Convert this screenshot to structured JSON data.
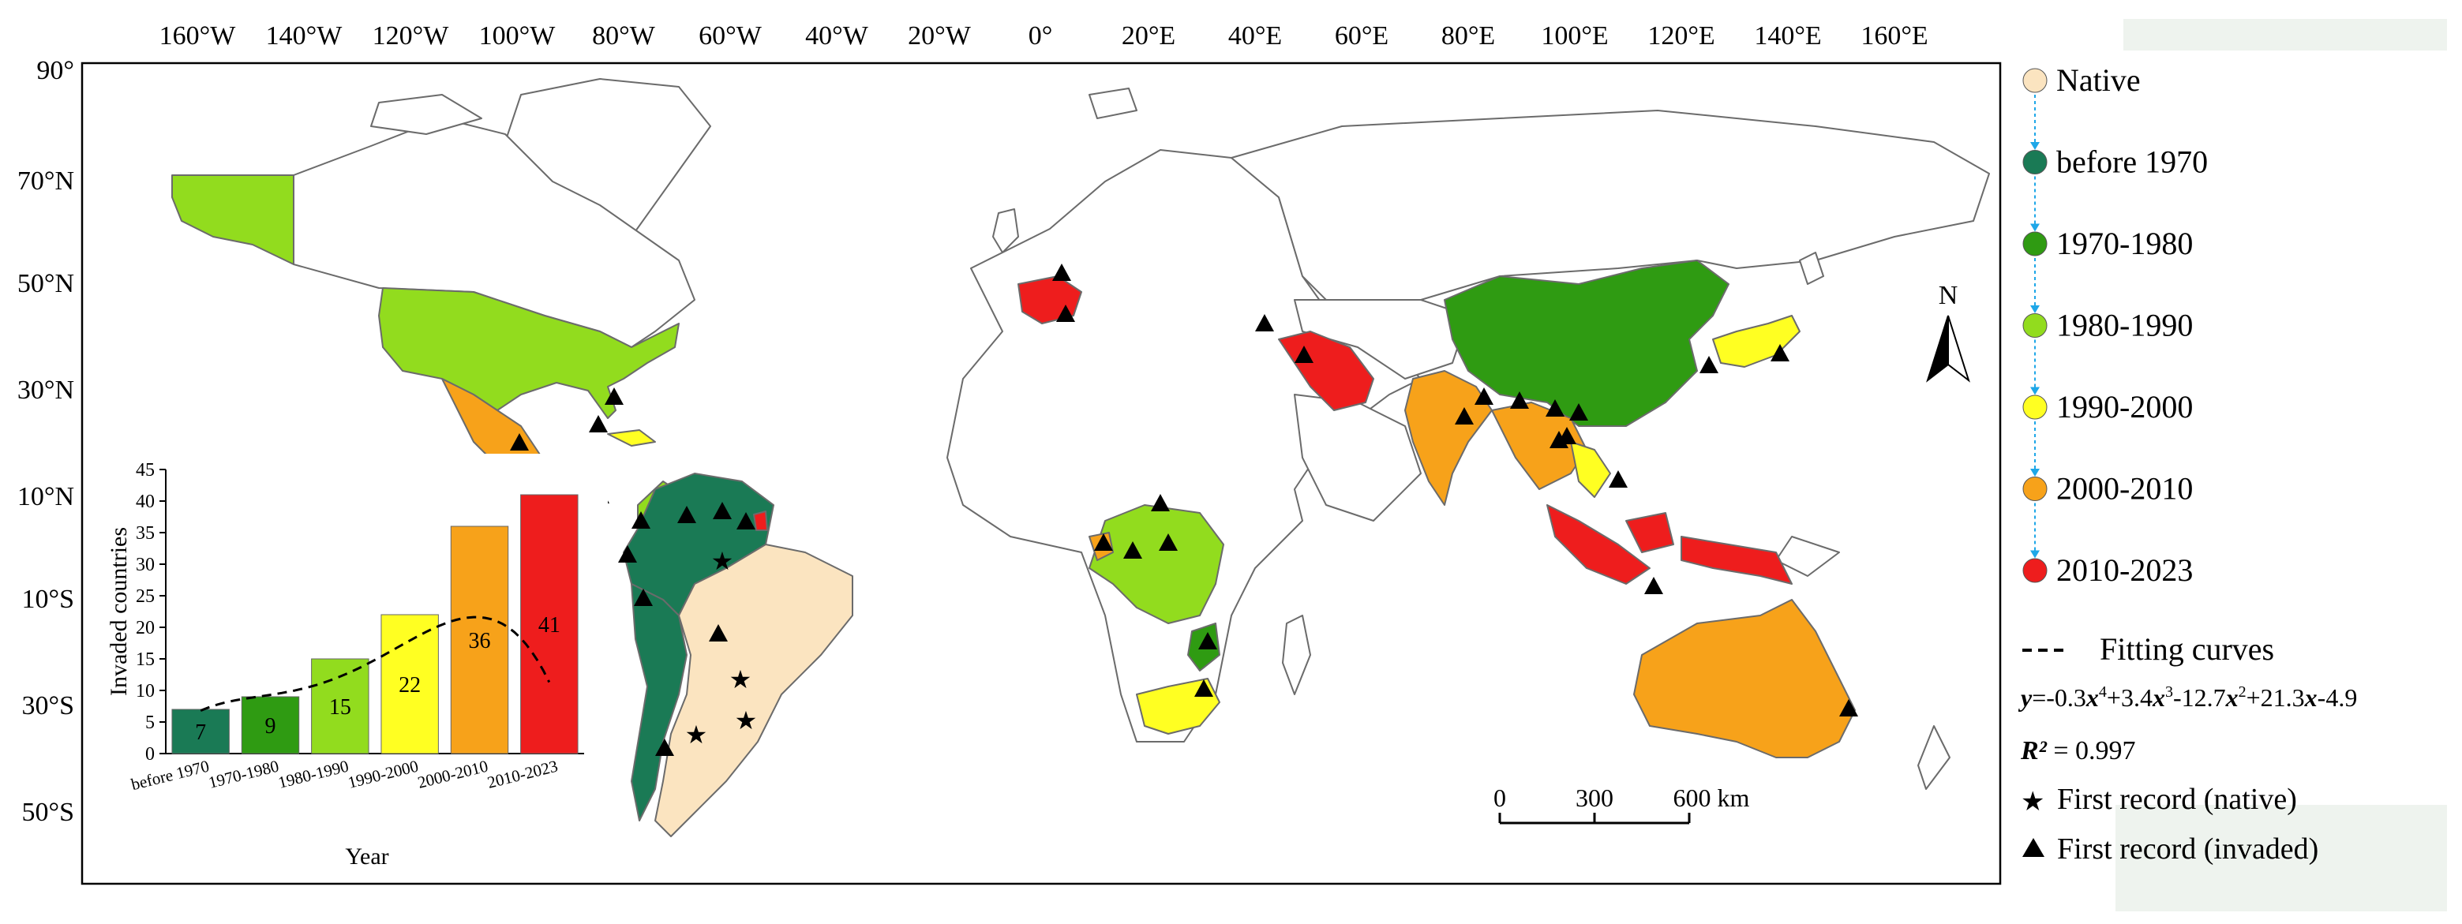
{
  "map": {
    "lon_labels": [
      "160°W",
      "140°W",
      "120°W",
      "100°W",
      "80°W",
      "60°W",
      "40°W",
      "20°W",
      "0°",
      "20°E",
      "40°E",
      "60°E",
      "80°E",
      "100°E",
      "120°E",
      "140°E",
      "160°E"
    ],
    "lat_labels": [
      "90°",
      "70°N",
      "50°N",
      "30°N",
      "10°N",
      "10°S",
      "30°S",
      "50°S"
    ],
    "north_arrow": "N",
    "scale_bar": {
      "ticks": [
        "0",
        "300",
        "600 km"
      ]
    }
  },
  "legend": {
    "colors": {
      "Native": "#fbe4c0",
      "before 1970": "#1a7a55",
      "1970-1980": "#2f9b12",
      "1980-1990": "#92dc1e",
      "1990-2000": "#ffff22",
      "2000-2010": "#f7a21a",
      "2010-2023": "#ee1d1d"
    },
    "items": [
      {
        "label": "Native",
        "color": "#fbe4c0"
      },
      {
        "label": "before 1970",
        "color": "#1a7a55"
      },
      {
        "label": "1970-1980",
        "color": "#2f9b12"
      },
      {
        "label": "1980-1990",
        "color": "#92dc1e"
      },
      {
        "label": "1990-2000",
        "color": "#ffff22"
      },
      {
        "label": "2000-2010",
        "color": "#f7a21a"
      },
      {
        "label": "2010-2023",
        "color": "#ee1d1d"
      }
    ],
    "fit_label": "Fitting curves",
    "r2_value": "= 0.997",
    "star_label": "First record (native)",
    "triangle_label": "First record (invaded)"
  },
  "chart_data": {
    "type": "bar",
    "categories": [
      "before 1970",
      "1970-1980",
      "1980-1990",
      "1990-2000",
      "2000-2010",
      "2010-2023"
    ],
    "values": [
      7,
      9,
      15,
      22,
      36,
      41
    ],
    "colors": [
      "#1a7a55",
      "#2f9b12",
      "#92dc1e",
      "#ffff22",
      "#f7a21a",
      "#ee1d1d"
    ],
    "ylabel": "Invaded countries",
    "xlabel": "Year",
    "ylim": [
      0,
      45
    ],
    "yticks": [
      0,
      5,
      10,
      15,
      20,
      25,
      30,
      35,
      40,
      45
    ],
    "fit": {
      "label": "Fitting curves",
      "coefficients": [
        -0.3,
        3.4,
        -12.7,
        21.3,
        -4.9
      ],
      "r2": 0.997
    }
  }
}
